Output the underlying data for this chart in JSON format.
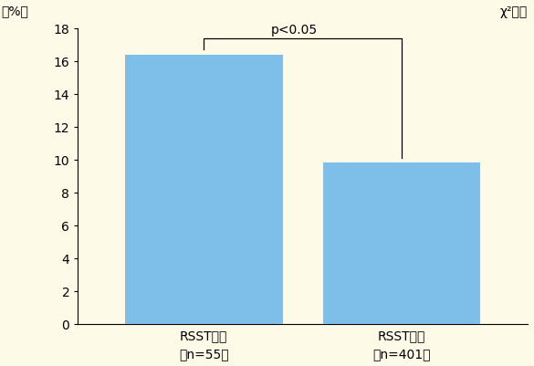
{
  "categories": [
    "RSST陽性\n（n=55）",
    "RSST陰性\n（n=401）"
  ],
  "values": [
    16.4,
    9.8
  ],
  "bar_color": "#7dbfe8",
  "background_color": "#fdfae8",
  "ylabel": "（%）",
  "ylim": [
    0,
    18
  ],
  "yticks": [
    0,
    2,
    4,
    6,
    8,
    10,
    12,
    14,
    16,
    18
  ],
  "significance_label": "p<0.05",
  "chi2_label": "χ²検定",
  "bar_width": 0.35,
  "tick_fontsize": 10,
  "label_fontsize": 10,
  "annot_fontsize": 10,
  "x_positions": [
    0.28,
    0.72
  ]
}
